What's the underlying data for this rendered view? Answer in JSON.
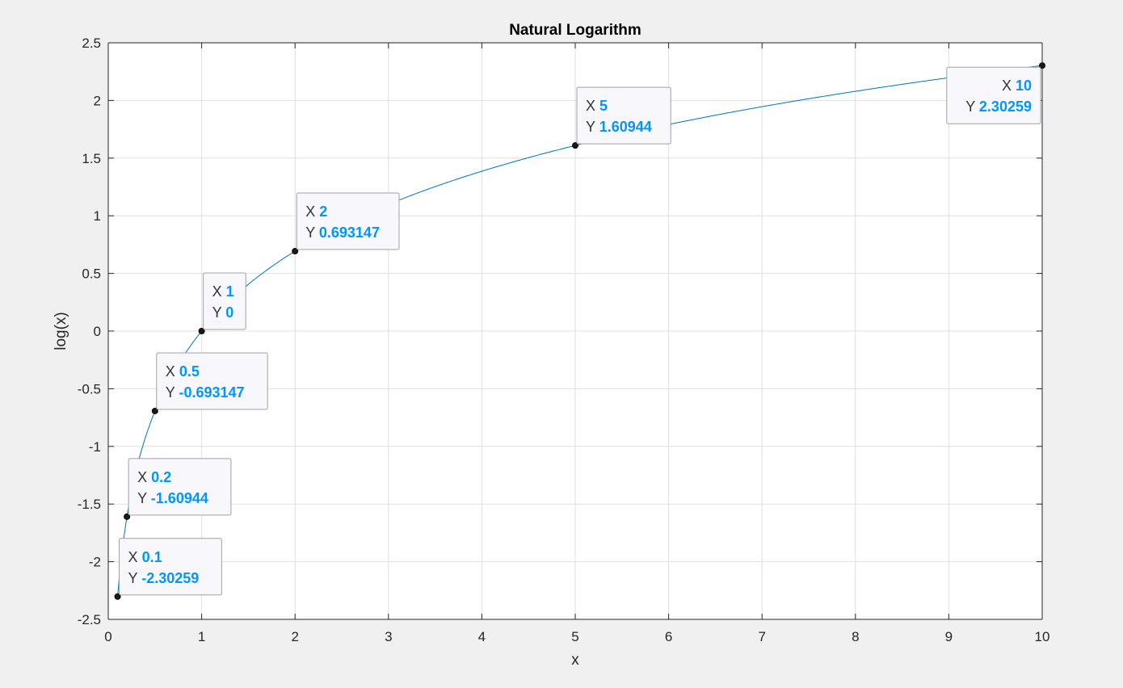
{
  "colors": {
    "figure_background": "#f0f0f0",
    "axes_background": "#ffffff",
    "grid": "#dfdfdf",
    "axis": "#262626",
    "line": "#0072bd",
    "marker": "#1a1a12",
    "datatip_value": "#0096ff",
    "datatip_bg": "#f8f8fc",
    "datatip_border": "#a0a0a0"
  },
  "chart_data": {
    "type": "line",
    "title": "Natural Logarithm",
    "xlabel": "x",
    "ylabel": "log(x)",
    "xlim": [
      0,
      10
    ],
    "ylim": [
      -2.5,
      2.5
    ],
    "grid": true,
    "xticks": [
      0,
      1,
      2,
      3,
      4,
      5,
      6,
      7,
      8,
      9,
      10
    ],
    "xtick_labels": [
      "0",
      "1",
      "2",
      "3",
      "4",
      "5",
      "6",
      "7",
      "8",
      "9",
      "10"
    ],
    "yticks": [
      2.5,
      2,
      1.5,
      1,
      0.5,
      0,
      -0.5,
      -1,
      -1.5,
      -2,
      -2.5
    ],
    "ytick_labels": [
      "2.5",
      "2",
      "1.5",
      "1",
      "0.5",
      "0",
      "-0.5",
      "-1",
      "-1.5",
      "-2",
      "-2.5"
    ],
    "series": [
      {
        "function": "log(x)",
        "x_range": [
          0.1,
          10
        ]
      }
    ],
    "datatips": [
      {
        "x": 0.1,
        "y": -2.30259,
        "x_label": "0.1",
        "y_label": "-2.30259",
        "placement": "upper-right"
      },
      {
        "x": 0.2,
        "y": -1.60944,
        "x_label": "0.2",
        "y_label": "-1.60944",
        "placement": "upper-right"
      },
      {
        "x": 0.5,
        "y": -0.693147,
        "x_label": "0.5",
        "y_label": "-0.693147",
        "placement": "upper-right"
      },
      {
        "x": 1,
        "y": 0,
        "x_label": "1",
        "y_label": "0",
        "placement": "upper-right"
      },
      {
        "x": 2,
        "y": 0.693147,
        "x_label": "2",
        "y_label": "0.693147",
        "placement": "upper-right"
      },
      {
        "x": 5,
        "y": 1.60944,
        "x_label": "5",
        "y_label": "1.60944",
        "placement": "upper-right"
      },
      {
        "x": 10,
        "y": 2.30259,
        "x_label": "10",
        "y_label": "2.30259",
        "placement": "lower-left"
      }
    ],
    "datatip_keys": {
      "x": "X",
      "y": "Y"
    }
  }
}
